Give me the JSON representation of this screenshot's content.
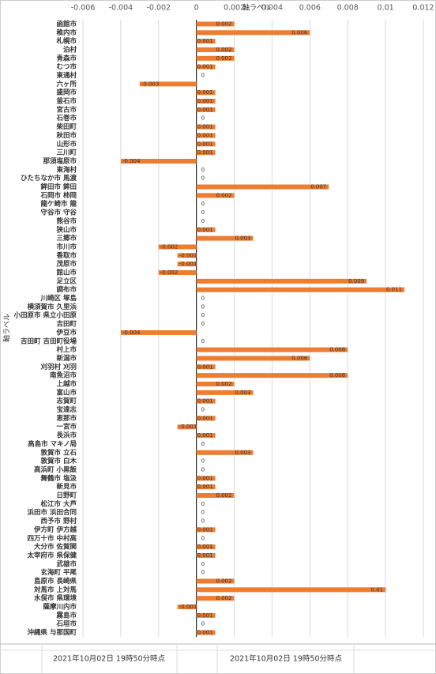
{
  "chart_data": {
    "type": "bar",
    "orientation": "horizontal",
    "x_axis_title": "軸ラベル",
    "y_axis_title": "軸ラベル",
    "categories": [
      "函館市",
      "稚内市",
      "札幌市",
      "泊村",
      "青森市",
      "むつ市",
      "東通村",
      "六ヶ所",
      "盛岡市",
      "釜石市",
      "宮古市",
      "石巻市",
      "柴田町",
      "秋田市",
      "山形市",
      "三川町",
      "那須塩原市",
      "東海村",
      "ひたちなか市 馬渡",
      "鉾田市 鉾田",
      "石岡市 柿岡",
      "龍ケ崎市 龍",
      "守谷市 守谷",
      "熊谷市",
      "狭山市",
      "三郷市",
      "市川市",
      "香取市",
      "茂原市",
      "館山市",
      "足立区",
      "調布市",
      "川崎区 塚島",
      "横須賀市 久里浜",
      "小田原市 県立小田原",
      "吉田町",
      "伊豆市",
      "吉田町 吉田町役場",
      "村上市",
      "新潟市",
      "刈羽村 刈羽",
      "南魚沼市",
      "上越市",
      "富山市",
      "志賀町",
      "宝達志",
      "恵那市",
      "一宮市",
      "長浜市",
      "高島市 マキノ局",
      "敦賀市 立石",
      "敦賀市 白木",
      "高浜町 小黒飯",
      "舞鶴市 塩汲",
      "新見市",
      "日野町",
      "松江市 大芦",
      "浜田市 浜田合同",
      "西予市 野村",
      "伊方町 伊方越",
      "四万十市 中村高",
      "大分市 佐賀関",
      "太宰府市 県保健",
      "武雄市",
      "玄海町 平尾",
      "島原市 長崎県",
      "対馬市 上対馬",
      "水俣市 県環境",
      "薩摩川内市",
      "霧島市",
      "石垣市",
      "沖縄県 与那国町"
    ],
    "values": [
      0.002,
      0.006,
      0.001,
      0.002,
      0.002,
      0.001,
      0,
      -0.003,
      0.001,
      0.001,
      0.001,
      0,
      0.001,
      0.001,
      0.001,
      0.001,
      -0.004,
      0,
      0,
      0.007,
      0.002,
      0,
      0,
      0,
      0.001,
      0.003,
      -0.002,
      -0.001,
      -0.001,
      -0.002,
      0.009,
      0.011,
      0,
      0,
      0,
      0,
      -0.004,
      0,
      0.008,
      0.006,
      0.001,
      0.008,
      0.002,
      0.003,
      0.001,
      0,
      0.001,
      -0.001,
      0.001,
      0,
      0.003,
      0,
      0,
      0.001,
      0.001,
      0.002,
      0,
      0,
      0,
      0.001,
      0,
      0.001,
      0.001,
      0,
      0,
      0.002,
      0.01,
      0.002,
      -0.001,
      0.001,
      0,
      0.001
    ],
    "color": "#ed7d31",
    "xlim": [
      -0.006,
      0.012
    ],
    "xticks": [
      -0.006,
      -0.004,
      -0.002,
      0,
      0.002,
      0.004,
      0.006,
      0.008,
      0.01,
      0.012
    ],
    "grid": true,
    "footer_labels": [
      "2021年10月02日 19時50分時点",
      "2021年10月02日 19時50分時点"
    ]
  }
}
